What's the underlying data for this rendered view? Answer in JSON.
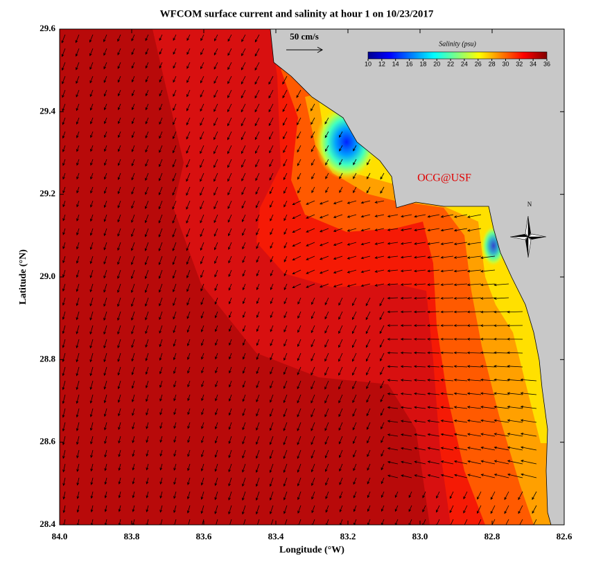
{
  "chart_data": {
    "type": "map",
    "title": "WFCOM surface current and salinity at hour 1 on 10/23/2017",
    "x_label": "Longitude (°W)",
    "y_label": "Latitude (°N)",
    "xlim": [
      84.0,
      82.6
    ],
    "ylim": [
      28.4,
      29.6
    ],
    "xticks": [
      {
        "value": 84.0,
        "label": "84.0"
      },
      83.8,
      83.6,
      83.4,
      83.2,
      {
        "value": 83.0,
        "label": "83.0"
      },
      82.8,
      82.6
    ],
    "yticks": [
      28.4,
      28.6,
      28.8,
      {
        "value": 29.0,
        "label": "29.0"
      },
      29.2,
      29.4,
      29.6
    ],
    "colorbar": {
      "title": "Salinity (psu)",
      "lim": [
        10,
        36
      ],
      "ticks": [
        10,
        12,
        14,
        16,
        18,
        20,
        22,
        24,
        26,
        28,
        30,
        32,
        34,
        36
      ]
    },
    "annotations": {
      "scale": "50 cm/s",
      "credit": "OCG@USF",
      "north": "N"
    }
  }
}
